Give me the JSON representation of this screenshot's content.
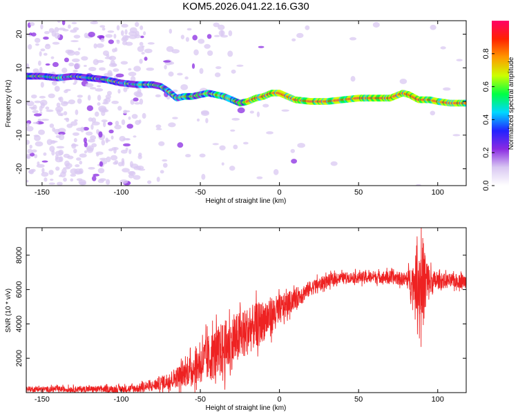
{
  "page_title": "KOM5.2026.041.22.16.G30",
  "chart_data": [
    {
      "type": "heatmap",
      "title": "KOM5.2026.041.22.16.G30",
      "xlabel": "Height of straight line (km)",
      "ylabel": "Frequency (Hz)",
      "xlim": [
        -160,
        118
      ],
      "ylim": [
        -25,
        24
      ],
      "x_ticks": [
        -150,
        -100,
        -50,
        0,
        50,
        100
      ],
      "y_ticks": [
        -20,
        -10,
        0,
        10,
        20
      ],
      "ridge": {
        "x": [
          -158,
          -150,
          -140,
          -130,
          -120,
          -110,
          -100,
          -90,
          -80,
          -75,
          -70,
          -65,
          -60,
          -55,
          -50,
          -45,
          -40,
          -35,
          -30,
          -25,
          -20,
          -15,
          -10,
          -5,
          0,
          5,
          10,
          20,
          30,
          40,
          50,
          60,
          70,
          78,
          82,
          88,
          95,
          100,
          108,
          118
        ],
        "y": [
          7.5,
          7.5,
          7,
          7.5,
          7,
          6.5,
          5.5,
          5,
          5,
          4.5,
          3,
          1,
          1.5,
          1.5,
          2,
          2.5,
          2,
          1.5,
          0.5,
          -0.5,
          0,
          1,
          1.5,
          2.5,
          2.5,
          1.5,
          0.5,
          0,
          0,
          0.5,
          1,
          1,
          1,
          2.5,
          2,
          0.5,
          0.5,
          0,
          -0.5,
          -0.5
        ]
      },
      "colorbar": {
        "label": "Normalized spectral amplitude",
        "range": [
          0,
          1
        ],
        "ticks": [
          0.0,
          0.2,
          0.4,
          0.6,
          0.8
        ],
        "tick_labels": [
          "0.0",
          "0.2",
          "0.4",
          "0.6",
          "0.8"
        ],
        "colors": [
          "#ffffff",
          "#d9c8f2",
          "#8a2be2",
          "#2222ff",
          "#00d8ff",
          "#00ff44",
          "#ccff00",
          "#ff9900",
          "#ff2200",
          "#ff0066"
        ]
      }
    },
    {
      "type": "line",
      "xlabel": "Height of straight line (km)",
      "ylabel": "SNR (10 * v/v)",
      "xlim": [
        -160,
        118
      ],
      "ylim": [
        0,
        9600
      ],
      "x_ticks": [
        -150,
        -100,
        -50,
        0,
        50,
        100
      ],
      "y_ticks": [
        2000,
        4000,
        6000,
        8000
      ],
      "series": [
        {
          "name": "SNR",
          "color": "#ee2222",
          "trend_x": [
            -160,
            -100,
            -90,
            -80,
            -70,
            -60,
            -50,
            -40,
            -30,
            -20,
            -10,
            0,
            10,
            20,
            30,
            40,
            50,
            60,
            70,
            80,
            85,
            88,
            90,
            92,
            95,
            100,
            110,
            118
          ],
          "trend_y": [
            200,
            200,
            250,
            400,
            700,
            1100,
            1700,
            2300,
            2900,
            3600,
            4200,
            4800,
            5500,
            6100,
            6500,
            6700,
            6700,
            6750,
            6700,
            6600,
            6500,
            6400,
            6400,
            6400,
            6400,
            6500,
            6500,
            6500
          ],
          "noise_x": [
            -160,
            -100,
            -80,
            -65,
            -55,
            -45,
            -35,
            -25,
            -15,
            -5,
            5,
            15,
            25,
            40,
            80,
            85,
            88,
            90,
            92,
            95,
            100,
            118
          ],
          "noise_y": [
            150,
            200,
            300,
            600,
            900,
            1400,
            1600,
            1500,
            1300,
            1100,
            700,
            500,
            400,
            300,
            400,
            1200,
            2200,
            3000,
            2000,
            900,
            450,
            400
          ]
        }
      ],
      "annotations": [
        {
          "x": 90,
          "y": 9600,
          "text": ""
        }
      ]
    }
  ]
}
